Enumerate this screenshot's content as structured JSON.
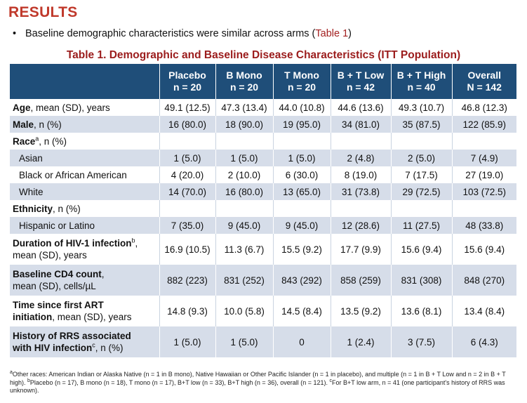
{
  "heading": "RESULTS",
  "bullet": {
    "marker": "•",
    "text": "Baseline demographic characteristics were similar across arms (",
    "ref": "Table 1",
    "close": ")"
  },
  "table_title": "Table 1. Demographic and Baseline Disease Characteristics (ITT Population)",
  "columns": [
    {
      "line1": "Placebo",
      "line2": "n = 20"
    },
    {
      "line1": "B Mono",
      "line2": "n = 20"
    },
    {
      "line1": "T Mono",
      "line2": "n = 20"
    },
    {
      "line1": "B + T Low",
      "line2": "n = 42"
    },
    {
      "line1": "B + T High",
      "line2": "n = 40"
    },
    {
      "line1": "Overall",
      "line2": "N = 142"
    }
  ],
  "rows": {
    "age": {
      "bold": "Age",
      "rest": ", mean (SD), years",
      "values": [
        "49.1 (12.5)",
        "47.3 (13.4)",
        "44.0 (10.8)",
        "44.6 (13.6)",
        "49.3 (10.7)",
        "46.8 (12.3)"
      ]
    },
    "male": {
      "bold": "Male",
      "rest": ", n (%)",
      "values": [
        "16 (80.0)",
        "18 (90.0)",
        "19 (95.0)",
        "34 (81.0)",
        "35 (87.5)",
        "122 (85.9)"
      ]
    },
    "race": {
      "bold": "Race",
      "sup": "a",
      "rest": ", n (%)"
    },
    "asian": {
      "label": "Asian",
      "values": [
        "1 (5.0)",
        "1 (5.0)",
        "1 (5.0)",
        "2 (4.8)",
        "2 (5.0)",
        "7 (4.9)"
      ]
    },
    "black": {
      "label": "Black or African American",
      "values": [
        "4 (20.0)",
        "2 (10.0)",
        "6 (30.0)",
        "8 (19.0)",
        "7 (17.5)",
        "27 (19.0)"
      ]
    },
    "white": {
      "label": "White",
      "values": [
        "14 (70.0)",
        "16 (80.0)",
        "13 (65.0)",
        "31 (73.8)",
        "29 (72.5)",
        "103 (72.5)"
      ]
    },
    "ethnicity": {
      "bold": "Ethnicity",
      "rest": ", n (%)"
    },
    "hispanic": {
      "label": "Hispanic or Latino",
      "values": [
        "7 (35.0)",
        "9 (45.0)",
        "9 (45.0)",
        "12 (28.6)",
        "11 (27.5)",
        "48 (33.8)"
      ]
    },
    "duration": {
      "bold": "Duration of HIV-1 infection",
      "sup": "b",
      "rest": ",",
      "line2": "mean (SD), years",
      "values": [
        "16.9 (10.5)",
        "11.3 (6.7)",
        "15.5 (9.2)",
        "17.7 (9.9)",
        "15.6 (9.4)",
        "15.6 (9.4)"
      ]
    },
    "cd4": {
      "bold": "Baseline CD4 count",
      "rest": ",",
      "line2": "mean (SD), cells/µL",
      "values": [
        "882 (223)",
        "831 (252)",
        "843 (292)",
        "858 (259)",
        "831 (308)",
        "848 (270)"
      ]
    },
    "art": {
      "bold": "Time since first ART",
      "line2_bold": "initiation",
      "line2": ", mean (SD), years",
      "values": [
        "14.8 (9.3)",
        "10.0 (5.8)",
        "14.5 (8.4)",
        "13.5 (9.2)",
        "13.6 (8.1)",
        "13.4 (8.4)"
      ]
    },
    "rrs": {
      "bold": "History of RRS associated",
      "line2_bold": "with HIV infection",
      "sup": "c",
      "line2": ", n (%)",
      "values": [
        "1 (5.0)",
        "1 (5.0)",
        "0",
        "1 (2.4)",
        "3 (7.5)",
        "6 (4.3)"
      ]
    }
  },
  "footnote": {
    "a_sup": "a",
    "a": "Other races: American Indian or Alaska Native (n = 1 in B mono), Native Hawaiian or Other Pacific Islander (n = 1 in placebo), and multiple (n = 1 in B + T Low and n = 2 in B + T high). ",
    "b_sup": "b",
    "b": "Placebo (n = 17), B mono (n = 18), T mono (n = 17), B+T low (n = 33), B+T high (n = 36), overall (n = 121). ",
    "c_sup": "c",
    "c": "For B+T low arm, n = 41 (one participant's history of RRS was unknown)."
  }
}
